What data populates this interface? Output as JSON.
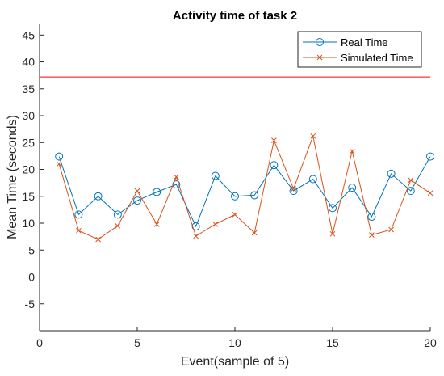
{
  "chart_data": {
    "type": "line",
    "title": "Activity time of task 2",
    "xlabel": "Event(sample of 5)",
    "ylabel": "Mean Time (seconds)",
    "xlim": [
      0,
      20
    ],
    "ylim": [
      -10,
      47
    ],
    "xticks": [
      0,
      5,
      10,
      15,
      20
    ],
    "yticks": [
      -5,
      0,
      5,
      10,
      15,
      20,
      25,
      30,
      35,
      40,
      45
    ],
    "grid": false,
    "legend_position": "top-right",
    "x": [
      1,
      2,
      3,
      4,
      5,
      6,
      7,
      8,
      9,
      10,
      11,
      12,
      13,
      14,
      15,
      16,
      17,
      18,
      19,
      20
    ],
    "series": [
      {
        "name": "Real Time",
        "color": "#0072BD",
        "marker": "circle",
        "values": [
          22.4,
          11.6,
          15.0,
          11.6,
          14.2,
          15.8,
          17.2,
          9.4,
          18.8,
          15.0,
          15.2,
          20.8,
          16.0,
          18.2,
          12.8,
          16.6,
          11.2,
          19.2,
          16.0,
          22.4
        ]
      },
      {
        "name": "Simulated Time",
        "color": "#D95319",
        "marker": "x",
        "values": [
          21.0,
          8.6,
          7.0,
          9.5,
          16.0,
          9.8,
          18.6,
          7.6,
          9.8,
          11.6,
          8.2,
          25.4,
          16.4,
          26.2,
          8.0,
          23.4,
          7.8,
          8.8,
          18.0,
          15.6
        ]
      }
    ],
    "reference_lines": [
      {
        "y": 37.2,
        "color": "#FF0000"
      },
      {
        "y": 15.8,
        "color": "#0072BD"
      },
      {
        "y": 0,
        "color": "#FF0000"
      }
    ]
  }
}
